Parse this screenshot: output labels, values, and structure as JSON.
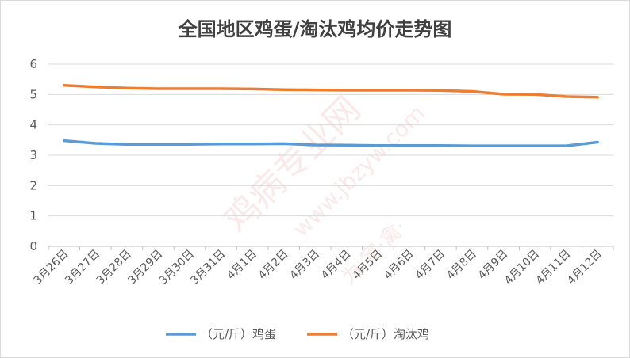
{
  "chart_data": {
    "type": "line",
    "title": "全国地区鸡蛋/淘汰鸡均价走势图",
    "categories": [
      "3月26日",
      "3月27日",
      "3月28日",
      "3月29日",
      "3月30日",
      "3月31日",
      "4月1日",
      "4月2日",
      "4月3日",
      "4月4日",
      "4月5日",
      "4月6日",
      "4月7日",
      "4月8日",
      "4月9日",
      "4月10日",
      "4月11日",
      "4月12日"
    ],
    "ylim": [
      0,
      6
    ],
    "yticks": [
      "0",
      "1",
      "2",
      "3",
      "4",
      "5",
      "6"
    ],
    "grid": true,
    "legend_position": "bottom",
    "series": [
      {
        "name": "（元/斤）鸡蛋",
        "color": "#5b9bd5",
        "values": [
          3.48,
          3.39,
          3.36,
          3.36,
          3.36,
          3.37,
          3.37,
          3.38,
          3.34,
          3.33,
          3.32,
          3.32,
          3.32,
          3.31,
          3.31,
          3.31,
          3.31,
          3.43
        ]
      },
      {
        "name": "（元/斤）淘汰鸡",
        "color": "#ed7d31",
        "values": [
          5.3,
          5.25,
          5.21,
          5.19,
          5.19,
          5.19,
          5.18,
          5.16,
          5.15,
          5.14,
          5.14,
          5.14,
          5.13,
          5.1,
          5.01,
          5.0,
          4.93,
          4.91
        ]
      }
    ]
  },
  "watermark": {
    "brand": "鸡病专业网",
    "site": "www.jbzyw.com",
    "extra": "为·家·禽·",
    "color": "#e06060"
  }
}
